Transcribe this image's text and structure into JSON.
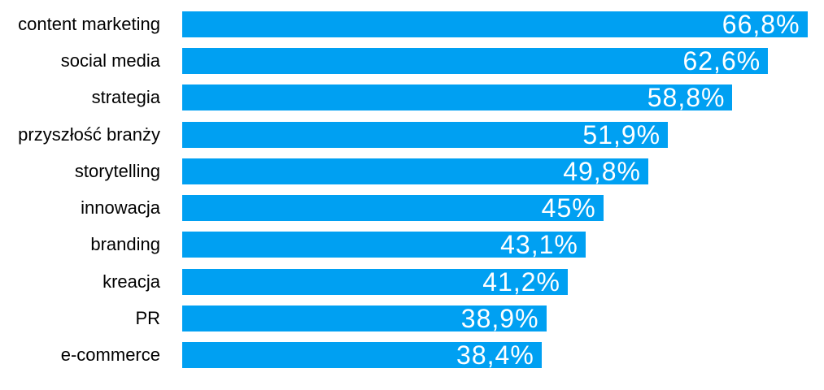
{
  "chart_data": {
    "type": "bar",
    "orientation": "horizontal",
    "title": "",
    "xlabel": "",
    "ylabel": "",
    "grid": false,
    "legend": false,
    "xlim": [
      0,
      68.58
    ],
    "categories": [
      "content marketing",
      "social media",
      "strategia",
      "przyszłość branży",
      "storytelling",
      "innowacja",
      "branding",
      "kreacja",
      "PR",
      "e-commerce"
    ],
    "values": [
      66.8,
      62.6,
      58.8,
      51.9,
      49.8,
      45,
      43.1,
      41.2,
      38.9,
      38.4
    ],
    "value_labels": [
      "66,8%",
      "62,6%",
      "58,8%",
      "51,9%",
      "49,8%",
      "45%",
      "43,1%",
      "41,2%",
      "38,9%",
      "38,4%"
    ],
    "colors": {
      "bar": "#00A0F2",
      "value_text": "#ffffff",
      "category_text": "#000000",
      "background": "#ffffff"
    }
  }
}
